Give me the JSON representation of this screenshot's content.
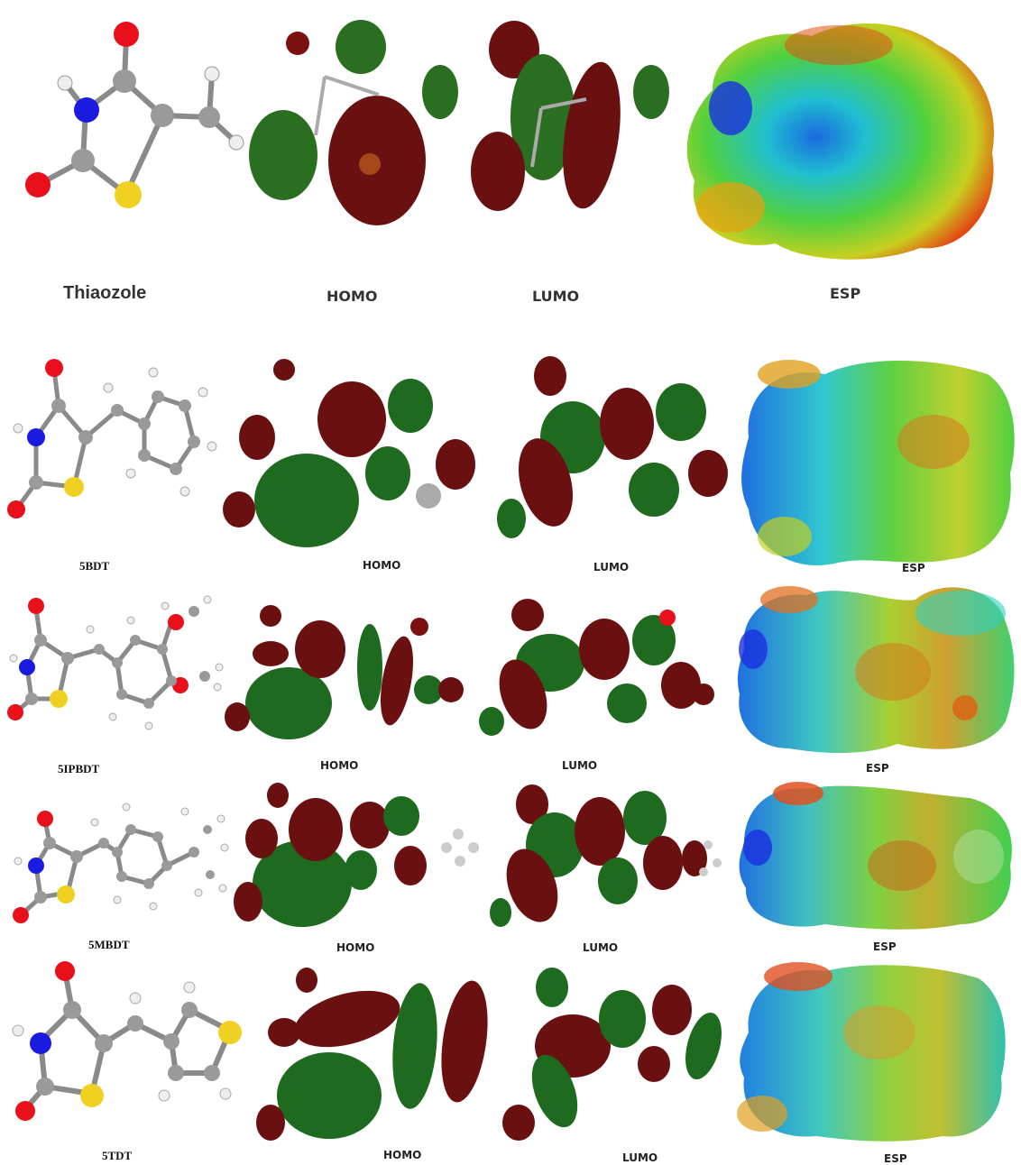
{
  "rows": [
    {
      "molecule": "Thiaozole",
      "homo": "HOMO",
      "lumo": "LUMO",
      "esp": "ESP"
    },
    {
      "molecule": "5BDT",
      "homo": "HOMO",
      "lumo": "LUMO",
      "esp": "ESP"
    },
    {
      "molecule": "5IPBDT",
      "homo": "HOMO",
      "lumo": "LUMO",
      "esp": "ESP"
    },
    {
      "molecule": "5MBDT",
      "homo": "HOMO",
      "lumo": "LUMO",
      "esp": "ESP"
    },
    {
      "molecule": "5TDT",
      "homo": "HOMO",
      "lumo": "LUMO",
      "esp": "ESP"
    }
  ],
  "colors": {
    "oxygen": "#e8101a",
    "nitrogen": "#1a1ae0",
    "sulfur": "#f0d020",
    "carbon": "#8c8c8c",
    "hydrogen": "#f2f2f2",
    "orbital_positive": "#6a1010",
    "orbital_negative": "#1e6a1e",
    "esp_negative": "#e82010",
    "esp_neutral": "#40d040",
    "esp_positive": "#1030e0"
  }
}
